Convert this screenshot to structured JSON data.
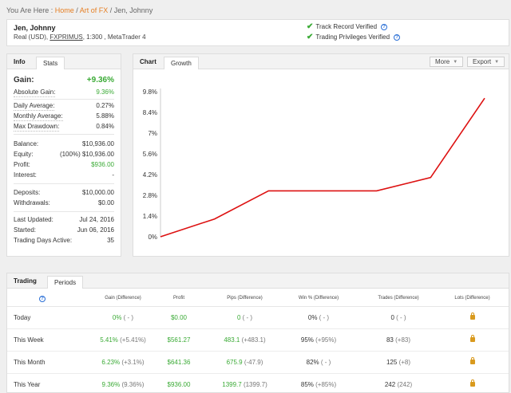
{
  "breadcrumb": {
    "prefix": "You Are Here : ",
    "home": "Home",
    "sep1": " / ",
    "section": "Art of FX",
    "sep2": " / ",
    "current": "Jen, Johnny"
  },
  "profile": {
    "name": "Jen, Johnny",
    "sub_prefix": "Real (USD), ",
    "broker": "FXPRIMUS",
    "sub_suffix": ", 1:300 , MetaTrader 4",
    "verified1": "Track Record Verified",
    "verified2": "Trading Privileges Verified"
  },
  "info": {
    "tab_info": "Info",
    "tab_stats": "Stats",
    "gain_label": "Gain:",
    "gain_value": "+9.36%",
    "rows": [
      {
        "label": "Absolute Gain:",
        "value": "9.36%"
      },
      {
        "label": "Daily Average:",
        "value": "0.27%"
      },
      {
        "label": "Monthly Average:",
        "value": "5.88%"
      },
      {
        "label": "Max Drawdown:",
        "value": "0.84%"
      },
      {
        "label": "Balance:",
        "value": "$10,936.00"
      },
      {
        "label": "Equity:",
        "value": "(100%) $10,936.00"
      },
      {
        "label": "Profit:",
        "value": "$936.00"
      },
      {
        "label": "Interest:",
        "value": "-"
      },
      {
        "label": "Deposits:",
        "value": "$10,000.00"
      },
      {
        "label": "Withdrawals:",
        "value": "$0.00"
      },
      {
        "label": "Last Updated:",
        "value": "Jul 24, 2016"
      },
      {
        "label": "Started:",
        "value": "Jun 06, 2016"
      },
      {
        "label": "Trading Days Active:",
        "value": "35"
      }
    ]
  },
  "chart": {
    "tab_chart": "Chart",
    "tab_growth": "Growth",
    "more_label": "More",
    "export_label": "Export",
    "line_color": "#dd1111"
  },
  "chart_data": {
    "type": "line",
    "title": "",
    "xlabel": "",
    "ylabel": "",
    "y_ticks": [
      "9.8%",
      "8.4%",
      "7%",
      "5.6%",
      "4.2%",
      "2.8%",
      "1.4%",
      "0%"
    ],
    "ylim": [
      0,
      9.8
    ],
    "series": [
      {
        "values": [
          0,
          1.2,
          3.1,
          3.1,
          3.1,
          4.0,
          9.36
        ]
      }
    ]
  },
  "trading": {
    "tab_trading": "Trading",
    "tab_periods": "Periods",
    "columns": [
      "Gain (Difference)",
      "Profit",
      "Pips (Difference)",
      "Win % (Difference)",
      "Trades (Difference)",
      "Lots (Difference)"
    ],
    "rows": [
      {
        "period": "Today",
        "gain": "0%",
        "gain_diff": " ( - )",
        "profit": "$0.00",
        "pips": "0",
        "pips_diff": " ( - )",
        "win": "0%",
        "win_diff": " ( - )",
        "trades": "0",
        "trades_diff": " ( - )"
      },
      {
        "period": "This Week",
        "gain": "5.41%",
        "gain_diff": " (+5.41%)",
        "profit": "$561.27",
        "pips": "483.1",
        "pips_diff": " (+483.1)",
        "win": "95%",
        "win_diff": " (+95%)",
        "trades": "83",
        "trades_diff": " (+83)"
      },
      {
        "period": "This Month",
        "gain": "6.23%",
        "gain_diff": " (+3.1%)",
        "profit": "$641.36",
        "pips": "675.9",
        "pips_diff": " (-47.9)",
        "win": "82%",
        "win_diff": " ( - )",
        "trades": "125",
        "trades_diff": " (+8)"
      },
      {
        "period": "This Year",
        "gain": "9.36%",
        "gain_diff": " (9.36%)",
        "profit": "$936.00",
        "pips": "1399.7",
        "pips_diff": " (1399.7)",
        "win": "85%",
        "win_diff": " (+85%)",
        "trades": "242",
        "trades_diff": " (242)"
      }
    ]
  }
}
